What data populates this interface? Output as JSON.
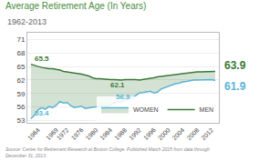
{
  "chart_data": {
    "type": "line",
    "title": "Average Retirement Age (In Years)",
    "subtitle": "1962-2013",
    "source": "Source: Center for Retirement Research at Boston College. Published March 2015 from data through\nDecember 31, 2013.",
    "x": [
      1962,
      1963,
      1964,
      1965,
      1966,
      1967,
      1968,
      1969,
      1970,
      1971,
      1972,
      1973,
      1974,
      1975,
      1976,
      1977,
      1978,
      1979,
      1980,
      1981,
      1982,
      1983,
      1984,
      1985,
      1986,
      1987,
      1988,
      1989,
      1990,
      1991,
      1992,
      1993,
      1994,
      1995,
      1996,
      1997,
      1998,
      1999,
      2000,
      2001,
      2002,
      2003,
      2004,
      2005,
      2006,
      2007,
      2008,
      2009,
      2010,
      2011,
      2012,
      2013
    ],
    "series": [
      {
        "name": "MEN",
        "color": "#3a7a3a",
        "values": [
          65.5,
          65.2,
          65.0,
          64.8,
          64.6,
          64.5,
          64.5,
          64.4,
          64.2,
          63.9,
          63.8,
          63.6,
          63.5,
          63.4,
          63.3,
          63.1,
          62.9,
          62.5,
          62.3,
          62.3,
          62.2,
          62.1,
          62.1,
          62.1,
          62.0,
          62.0,
          62.1,
          62.1,
          62.2,
          62.1,
          62.0,
          62.1,
          62.2,
          62.3,
          62.5,
          62.7,
          62.8,
          62.9,
          63.1,
          63.2,
          63.3,
          63.4,
          63.5,
          63.6,
          63.7,
          63.7,
          63.8,
          63.8,
          63.8,
          63.8,
          63.9,
          63.9
        ]
      },
      {
        "name": "WOMEN",
        "color": "#5ab4d6",
        "values": [
          53.4,
          54.2,
          55.4,
          55.8,
          55.5,
          56.1,
          55.9,
          56.4,
          57.2,
          56.9,
          57.0,
          56.3,
          55.9,
          56.1,
          56.2,
          55.7,
          55.8,
          56.0,
          56.0,
          56.2,
          56.3,
          56.1,
          56.5,
          56.9,
          57.1,
          57.1,
          57.4,
          57.8,
          58.0,
          58.6,
          59.1,
          59.2,
          59.4,
          59.5,
          59.1,
          59.3,
          60.0,
          60.3,
          60.7,
          61.0,
          61.2,
          61.3,
          61.6,
          61.7,
          61.9,
          62.0,
          62.0,
          62.0,
          62.0,
          62.0,
          62.1,
          61.9
        ]
      }
    ],
    "xlim": [
      1961,
      2014
    ],
    "xticks": [
      1964,
      1969,
      1972,
      1976,
      1980,
      1984,
      1988,
      1992,
      1996,
      2000,
      2004,
      2008,
      2012
    ],
    "ylim": [
      52.5,
      72.5
    ],
    "yticks": [
      53,
      56,
      59,
      62,
      65,
      68,
      71
    ],
    "grid": true,
    "legend": "lower right",
    "annotations": [
      {
        "text": "65.5",
        "x": 1962.5,
        "y": 65.5,
        "color": "#3a7a3a"
      },
      {
        "text": "62.1",
        "x": 1983.5,
        "y": 62.1,
        "color": "#3a7a3a"
      },
      {
        "text": "53.4",
        "x": 1962.5,
        "y": 53.4,
        "color": "#5ab4d6"
      },
      {
        "text": "56.9",
        "x": 1985.0,
        "y": 56.9,
        "color": "#5ab4d6"
      }
    ],
    "end_labels": [
      {
        "text": "63.9",
        "x": 2013,
        "y": 63.9,
        "color": "#3a7a3a"
      },
      {
        "text": "61.9",
        "x": 2013,
        "y": 61.9,
        "color": "#5ab4d6"
      }
    ]
  }
}
